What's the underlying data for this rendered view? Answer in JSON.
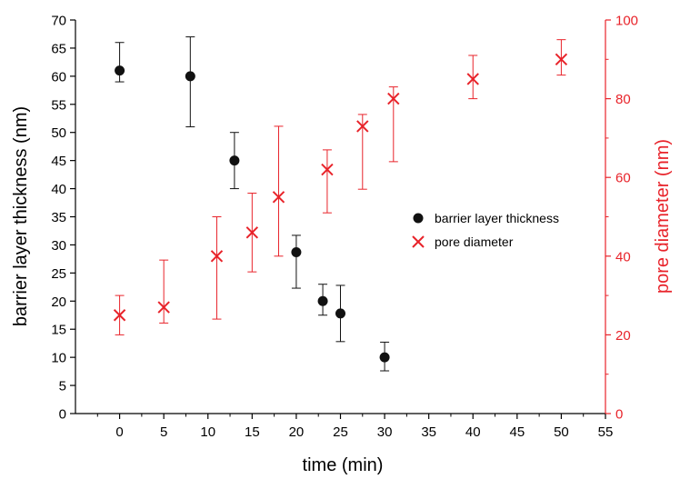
{
  "chart_data": {
    "type": "scatter",
    "xlabel": "time (min)",
    "xlim": [
      -5,
      55
    ],
    "xticks": [
      0,
      5,
      10,
      15,
      20,
      25,
      30,
      35,
      40,
      45,
      50,
      55
    ],
    "y_left": {
      "label": "barrier layer thickness (nm)",
      "lim": [
        0,
        70
      ],
      "ticks": [
        0,
        5,
        10,
        15,
        20,
        25,
        30,
        35,
        40,
        45,
        50,
        55,
        60,
        65,
        70
      ],
      "color": "#000000"
    },
    "y_right": {
      "label": "pore diameter (nm)",
      "lim": [
        0,
        100
      ],
      "ticks": [
        0,
        20,
        40,
        60,
        80,
        100
      ],
      "color": "#e8232a"
    },
    "legend": {
      "position": "center-right"
    },
    "series": [
      {
        "name": "barrier layer thickness",
        "axis": "left",
        "marker": "filled-circle",
        "color": "#111111",
        "points": [
          {
            "x": 0,
            "y": 61,
            "err_low": 59,
            "err_high": 66
          },
          {
            "x": 8,
            "y": 60,
            "err_low": 51,
            "err_high": 67
          },
          {
            "x": 13,
            "y": 45,
            "err_low": 40,
            "err_high": 50
          },
          {
            "x": 20,
            "y": 28.7,
            "err_low": 22.3,
            "err_high": 31.7
          },
          {
            "x": 23,
            "y": 20,
            "err_low": 17.5,
            "err_high": 23
          },
          {
            "x": 25,
            "y": 17.8,
            "err_low": 12.8,
            "err_high": 22.8
          },
          {
            "x": 30,
            "y": 10,
            "err_low": 7.6,
            "err_high": 12.7
          }
        ]
      },
      {
        "name": "pore diameter",
        "axis": "right",
        "marker": "cross",
        "color": "#e8232a",
        "points": [
          {
            "x": 0,
            "y": 25,
            "err_low": 20,
            "err_high": 30
          },
          {
            "x": 5,
            "y": 27,
            "err_low": 23,
            "err_high": 39
          },
          {
            "x": 11,
            "y": 40,
            "err_low": 24,
            "err_high": 50
          },
          {
            "x": 15,
            "y": 46,
            "err_low": 36,
            "err_high": 56
          },
          {
            "x": 18,
            "y": 55,
            "err_low": 40,
            "err_high": 73
          },
          {
            "x": 23.5,
            "y": 62,
            "err_low": 51,
            "err_high": 67
          },
          {
            "x": 27.5,
            "y": 73,
            "err_low": 57,
            "err_high": 76
          },
          {
            "x": 31,
            "y": 80,
            "err_low": 64,
            "err_high": 83
          },
          {
            "x": 40,
            "y": 85,
            "err_low": 80,
            "err_high": 91
          },
          {
            "x": 50,
            "y": 90,
            "err_low": 86,
            "err_high": 95
          }
        ]
      }
    ]
  }
}
